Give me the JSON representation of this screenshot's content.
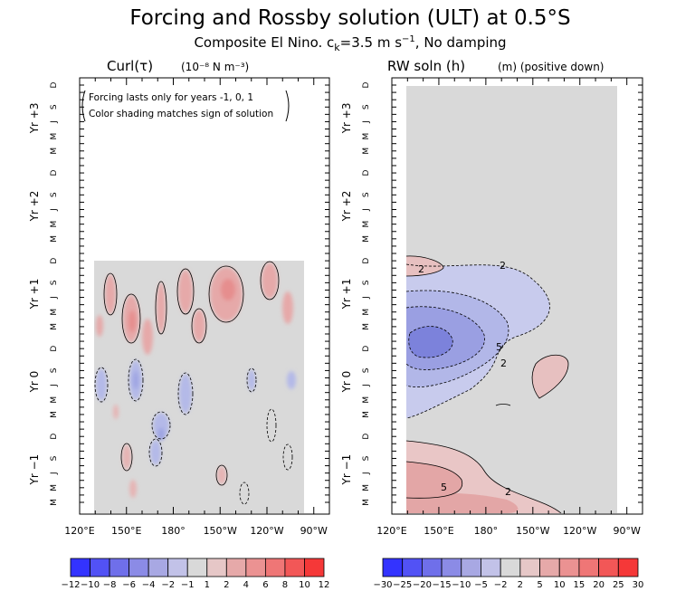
{
  "title": "Forcing and Rossby solution (ULT) at 0.5°S",
  "subtitle": "Composite El Nino. c_k=3.5 m s^-1, No damping",
  "panels": [
    {
      "title": "Curl(τ)",
      "units": "(10⁻⁸ N m⁻³)",
      "note_lines": [
        "Forcing lasts only for years -1, 0, 1",
        "Color shading matches sign of solution"
      ]
    },
    {
      "title": "RW soln (h)",
      "units": "(m) (positive down)"
    }
  ],
  "x_tick_labels": [
    "120°E",
    "150°E",
    "180°",
    "150°W",
    "120°W",
    "90°W"
  ],
  "year_labels": [
    "Yr −1",
    "Yr 0",
    "Yr +1",
    "Yr +2",
    "Yr +3"
  ],
  "month_labels": [
    "M",
    "M",
    "J",
    "S",
    "D"
  ],
  "chart_data": [
    {
      "type": "heatmap",
      "title": "Curl(τ)",
      "units": "10^-8 N m^-3",
      "x_range": [
        "120°E",
        "80°W"
      ],
      "x_data_extent": [
        "140°E",
        "85°W"
      ],
      "y_range": [
        "Yr -1 M",
        "Yr +3 D"
      ],
      "y_data_extent": [
        "Yr -1 M",
        "Yr +1 D"
      ],
      "colorbar_levels": [
        "−12",
        "−10",
        "−8",
        "−6",
        "−4",
        "−2",
        "−1",
        "1",
        "2",
        "4",
        "6",
        "8",
        "10",
        "12"
      ],
      "features": [
        {
          "sign": "positive",
          "region": "Yr +1, 140°E–100°W",
          "approx_max": 6
        },
        {
          "sign": "negative",
          "region": "Yr 0, 150°E–150°W",
          "approx_min": -4
        },
        {
          "sign": "positive",
          "region": "Yr -1, scattered 140°E–100°W",
          "approx_max": 2
        }
      ]
    },
    {
      "type": "heatmap",
      "title": "RW soln (h)",
      "units": "m (positive down)",
      "x_range": [
        "120°E",
        "80°W"
      ],
      "x_data_extent": [
        "140°E",
        "85°W"
      ],
      "y_range": [
        "Yr -1 M",
        "Yr +3 D"
      ],
      "colorbar_levels": [
        "−30",
        "−25",
        "−20",
        "−15",
        "−10",
        "−5",
        "−2",
        "2",
        "5",
        "10",
        "15",
        "20",
        "25",
        "30"
      ],
      "contour_labels": [
        "2",
        "2",
        "5",
        "2",
        "5",
        "2"
      ],
      "features": [
        {
          "sign": "negative",
          "region": "Yr 0 D to Yr +1 J, 140°E–130°W",
          "approx_min": -15
        },
        {
          "sign": "positive",
          "region": "Yr -1, 140°E–150°W",
          "approx_max": 10
        },
        {
          "sign": "positive",
          "region": "Yr 0 S, 135°W–125°W",
          "approx_max": 5
        }
      ]
    }
  ]
}
